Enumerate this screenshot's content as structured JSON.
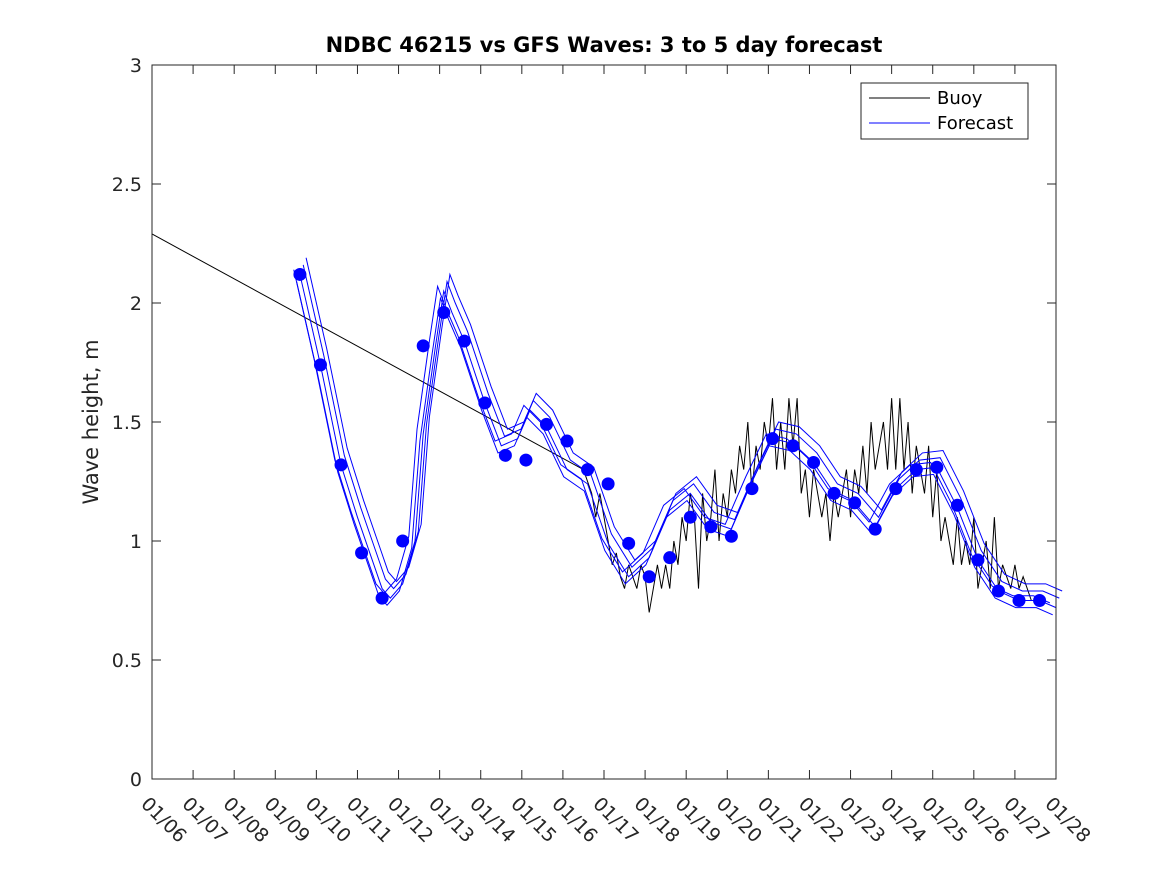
{
  "chart_data": {
    "type": "line",
    "title": "NDBC 46215 vs GFS Waves: 3 to 5 day forecast",
    "xlabel": "",
    "ylabel": "Wave height, m",
    "xlim": [
      0,
      22
    ],
    "ylim": [
      0,
      3
    ],
    "x_ticks": [
      0,
      1,
      2,
      3,
      4,
      5,
      6,
      7,
      8,
      9,
      10,
      11,
      12,
      13,
      14,
      15,
      16,
      17,
      18,
      19,
      20,
      21,
      22
    ],
    "x_tick_labels": [
      "01/06",
      "01/07",
      "01/08",
      "01/09",
      "01/10",
      "01/11",
      "01/12",
      "01/13",
      "01/14",
      "01/15",
      "01/16",
      "01/17",
      "01/18",
      "01/19",
      "01/20",
      "01/21",
      "01/22",
      "01/23",
      "01/24",
      "01/25",
      "01/26",
      "01/27",
      "01/28"
    ],
    "y_ticks": [
      0,
      0.5,
      1,
      1.5,
      2,
      2.5,
      3
    ],
    "y_tick_labels": [
      "0",
      "0.5",
      "1",
      "1.5",
      "2",
      "2.5",
      "3"
    ],
    "legend": {
      "position": "top-right",
      "entries": [
        {
          "label": "Buoy",
          "color": "#000000"
        },
        {
          "label": "Forecast",
          "color": "#0000ff"
        }
      ]
    },
    "series": [
      {
        "name": "Buoy",
        "color": "#000000",
        "x": [
          0,
          10.5,
          10.7,
          10.8,
          10.9,
          11.0,
          11.1,
          11.2,
          11.3,
          11.4,
          11.5,
          11.6,
          11.7,
          11.8,
          11.9,
          12.0,
          12.1,
          12.2,
          12.3,
          12.4,
          12.5,
          12.6,
          12.7,
          12.8,
          12.9,
          13.0,
          13.1,
          13.2,
          13.3,
          13.4,
          13.5,
          13.6,
          13.7,
          13.8,
          13.9,
          14.0,
          14.1,
          14.2,
          14.3,
          14.4,
          14.5,
          14.6,
          14.7,
          14.8,
          14.9,
          15.0,
          15.1,
          15.2,
          15.3,
          15.4,
          15.5,
          15.6,
          15.7,
          15.8,
          15.9,
          16.0,
          16.1,
          16.2,
          16.3,
          16.4,
          16.5,
          16.6,
          16.7,
          16.8,
          16.9,
          17.0,
          17.1,
          17.2,
          17.3,
          17.4,
          17.5,
          17.6,
          17.7,
          17.8,
          17.9,
          18.0,
          18.1,
          18.2,
          18.3,
          18.4,
          18.5,
          18.6,
          18.7,
          18.8,
          18.9,
          19.0,
          19.1,
          19.2,
          19.3,
          19.4,
          19.5,
          19.6,
          19.7,
          19.8,
          19.9,
          20.0,
          20.1,
          20.2,
          20.3,
          20.4,
          20.5,
          20.6,
          20.7,
          20.8,
          20.9,
          21.0,
          21.1,
          21.2,
          21.3,
          21.4
        ],
        "values": [
          2.29,
          1.3,
          1.2,
          1.1,
          1.2,
          1.1,
          1.0,
          0.9,
          0.95,
          0.85,
          0.8,
          0.9,
          0.85,
          0.8,
          0.9,
          0.85,
          0.7,
          0.8,
          0.9,
          0.8,
          0.9,
          0.8,
          1.0,
          0.9,
          1.1,
          1.0,
          1.2,
          1.1,
          0.8,
          1.2,
          1.0,
          1.1,
          1.3,
          1.0,
          1.2,
          1.1,
          1.3,
          1.2,
          1.4,
          1.3,
          1.5,
          1.2,
          1.4,
          1.3,
          1.5,
          1.4,
          1.6,
          1.3,
          1.5,
          1.3,
          1.6,
          1.4,
          1.6,
          1.2,
          1.3,
          1.1,
          1.3,
          1.2,
          1.1,
          1.2,
          1.0,
          1.2,
          1.1,
          1.2,
          1.3,
          1.1,
          1.3,
          1.2,
          1.4,
          1.2,
          1.5,
          1.3,
          1.4,
          1.5,
          1.3,
          1.6,
          1.3,
          1.6,
          1.3,
          1.5,
          1.2,
          1.4,
          1.3,
          1.2,
          1.4,
          1.1,
          1.3,
          1.0,
          1.1,
          1.0,
          0.9,
          1.1,
          0.9,
          1.0,
          0.9,
          1.1,
          0.8,
          0.9,
          1.0,
          0.8,
          1.1,
          0.8,
          0.9,
          0.85,
          0.8,
          0.9,
          0.8,
          0.85,
          0.8,
          0.75
        ]
      },
      {
        "name": "Forecast",
        "color": "#0000ff",
        "x": [
          3.6,
          4.1,
          4.6,
          5.0,
          5.3,
          5.6,
          5.8,
          6.1,
          6.4,
          6.6,
          6.9,
          7.1,
          7.3,
          7.6,
          8.1,
          8.5,
          8.9,
          9.2,
          9.6,
          10.1,
          10.6,
          11.1,
          11.6,
          12.1,
          12.6,
          13.1,
          13.6,
          14.1,
          14.6,
          15.1,
          15.6,
          16.1,
          16.6,
          17.1,
          17.6,
          18.1,
          18.6,
          19.1,
          19.6,
          20.1,
          20.6,
          21.1,
          21.6,
          22.0
        ],
        "values": [
          2.12,
          1.74,
          1.32,
          1.1,
          0.95,
          0.8,
          0.76,
          0.82,
          1.0,
          1.45,
          1.82,
          2.05,
          1.96,
          1.84,
          1.58,
          1.4,
          1.43,
          1.55,
          1.48,
          1.3,
          1.24,
          0.99,
          0.85,
          0.93,
          1.13,
          1.2,
          1.08,
          1.05,
          1.25,
          1.43,
          1.41,
          1.33,
          1.2,
          1.16,
          1.06,
          1.22,
          1.3,
          1.31,
          1.14,
          0.92,
          0.79,
          0.75,
          0.75,
          0.72
        ]
      },
      {
        "name": "Forecast markers",
        "color": "#0000ff",
        "x": [
          3.6,
          4.1,
          4.6,
          5.1,
          5.6,
          6.1,
          6.6,
          7.1,
          7.6,
          8.1,
          8.6,
          9.1,
          9.6,
          10.1,
          10.6,
          11.1,
          11.6,
          12.1,
          12.6,
          13.1,
          13.6,
          14.1,
          14.6,
          15.1,
          15.6,
          16.1,
          16.6,
          17.1,
          17.6,
          18.1,
          18.6,
          19.1,
          19.6,
          20.1,
          20.6,
          21.1,
          21.6
        ],
        "values": [
          2.12,
          1.74,
          1.32,
          0.95,
          0.76,
          1.0,
          1.82,
          1.96,
          1.84,
          1.58,
          1.36,
          1.34,
          1.49,
          1.42,
          1.3,
          1.24,
          0.99,
          0.85,
          0.93,
          1.1,
          1.06,
          1.02,
          1.22,
          1.43,
          1.4,
          1.33,
          1.2,
          1.16,
          1.05,
          1.22,
          1.3,
          1.31,
          1.15,
          0.92,
          0.79,
          0.75,
          0.75
        ]
      }
    ]
  }
}
